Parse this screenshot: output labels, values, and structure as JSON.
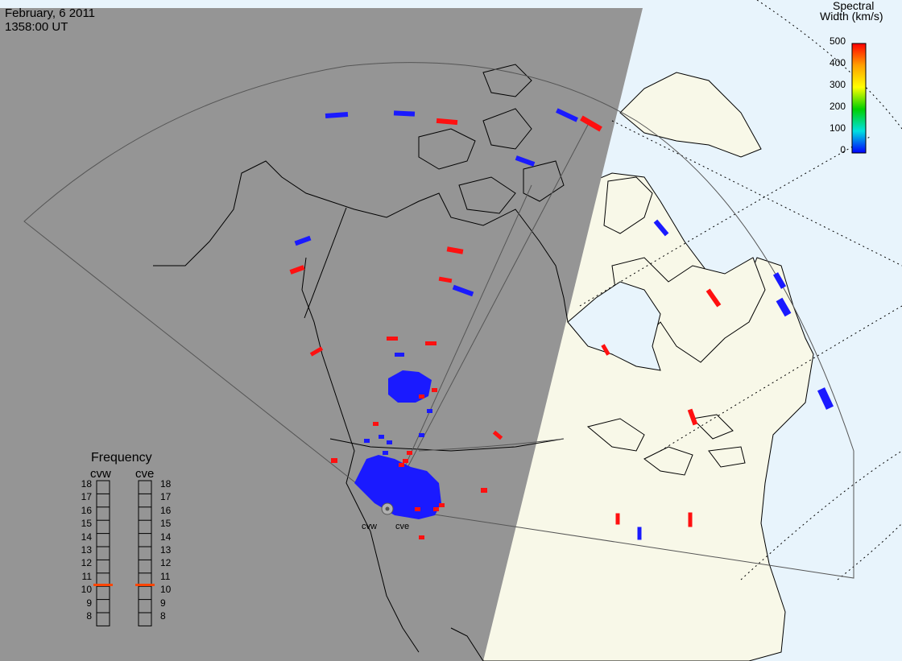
{
  "header": {
    "date": "February, 6 2011",
    "time": "1358:00 UT"
  },
  "colorbar": {
    "title_line1": "Spectral",
    "title_line2": "Width (km/s)",
    "ticks": [
      "500",
      "400",
      "300",
      "200",
      "100",
      "0"
    ],
    "colors": [
      "#ff0000",
      "#ffa000",
      "#ffff00",
      "#00d000",
      "#00e0e0",
      "#0000ff"
    ]
  },
  "frequency": {
    "title": "Frequency",
    "radars": [
      "cvw",
      "cve"
    ],
    "levels": [
      "18",
      "17",
      "16",
      "15",
      "14",
      "13",
      "12",
      "11",
      "10",
      "9",
      "8"
    ],
    "current_mhz": {
      "cvw": 10.6,
      "cve": 10.6
    }
  },
  "sites": [
    "cvw",
    "cve"
  ],
  "colors": {
    "night": "#959595",
    "day_land": "#f8f8e8",
    "day_ocean": "#e8f4fc",
    "low_width": "#1a1aff",
    "high_width": "#ff1010",
    "frequency_marker": "#ff4500"
  }
}
